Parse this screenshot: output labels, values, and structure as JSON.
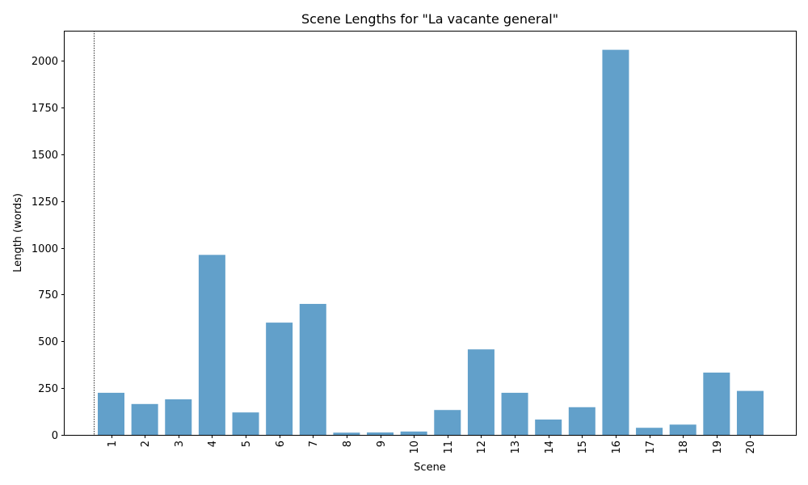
{
  "chart_data": {
    "type": "bar",
    "title": "Scene Lengths for \"La vacante general\"",
    "xlabel": "Scene",
    "ylabel": "Length (words)",
    "categories": [
      "1",
      "2",
      "3",
      "4",
      "5",
      "6",
      "7",
      "8",
      "9",
      "10",
      "11",
      "12",
      "13",
      "14",
      "15",
      "16",
      "17",
      "18",
      "19",
      "20"
    ],
    "values": [
      225,
      165,
      190,
      962,
      120,
      600,
      700,
      12,
      13,
      18,
      133,
      457,
      225,
      82,
      148,
      2058,
      38,
      55,
      333,
      235
    ],
    "ylim": [
      0,
      2160
    ],
    "yticks": [
      0,
      250,
      500,
      750,
      1000,
      1250,
      1500,
      1750,
      2000
    ],
    "bar_color": "#1f77b4",
    "bar_opacity": 0.7,
    "grid": false,
    "reference_line": {
      "style": "dotted",
      "color": "#000000"
    }
  }
}
